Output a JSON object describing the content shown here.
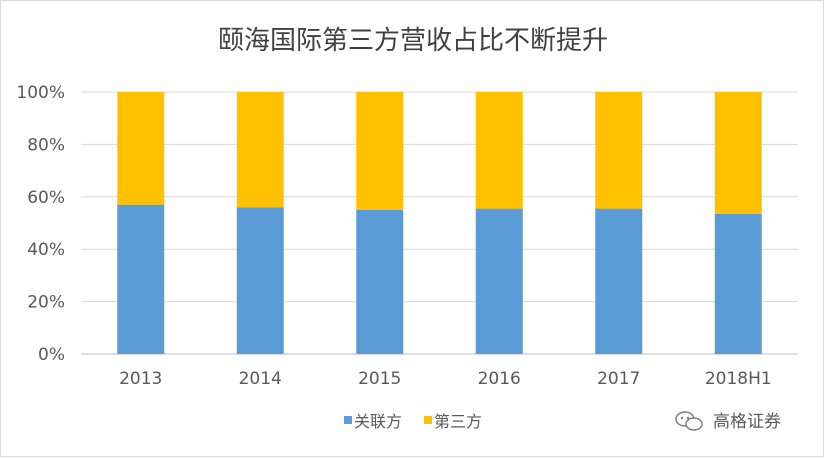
{
  "chart_data": {
    "type": "bar",
    "stacked": true,
    "title": "颐海国际第三方营收占比不断提升",
    "categories": [
      "2013",
      "2014",
      "2015",
      "2016",
      "2017",
      "2018H1"
    ],
    "series": [
      {
        "name": "关联方",
        "values": [
          57,
          56,
          55,
          55.5,
          55.5,
          53.5
        ],
        "color": "#5b9bd5"
      },
      {
        "name": "第三方",
        "values": [
          43,
          44,
          45,
          44.5,
          44.5,
          46.5
        ],
        "color": "#ffc000"
      }
    ],
    "y_ticks": [
      "0%",
      "20%",
      "40%",
      "60%",
      "80%",
      "100%"
    ],
    "ylim": [
      0,
      100
    ],
    "grid": true,
    "legend_position": "bottom"
  },
  "watermark": {
    "text": "高格证券",
    "icon": "wechat-icon"
  }
}
